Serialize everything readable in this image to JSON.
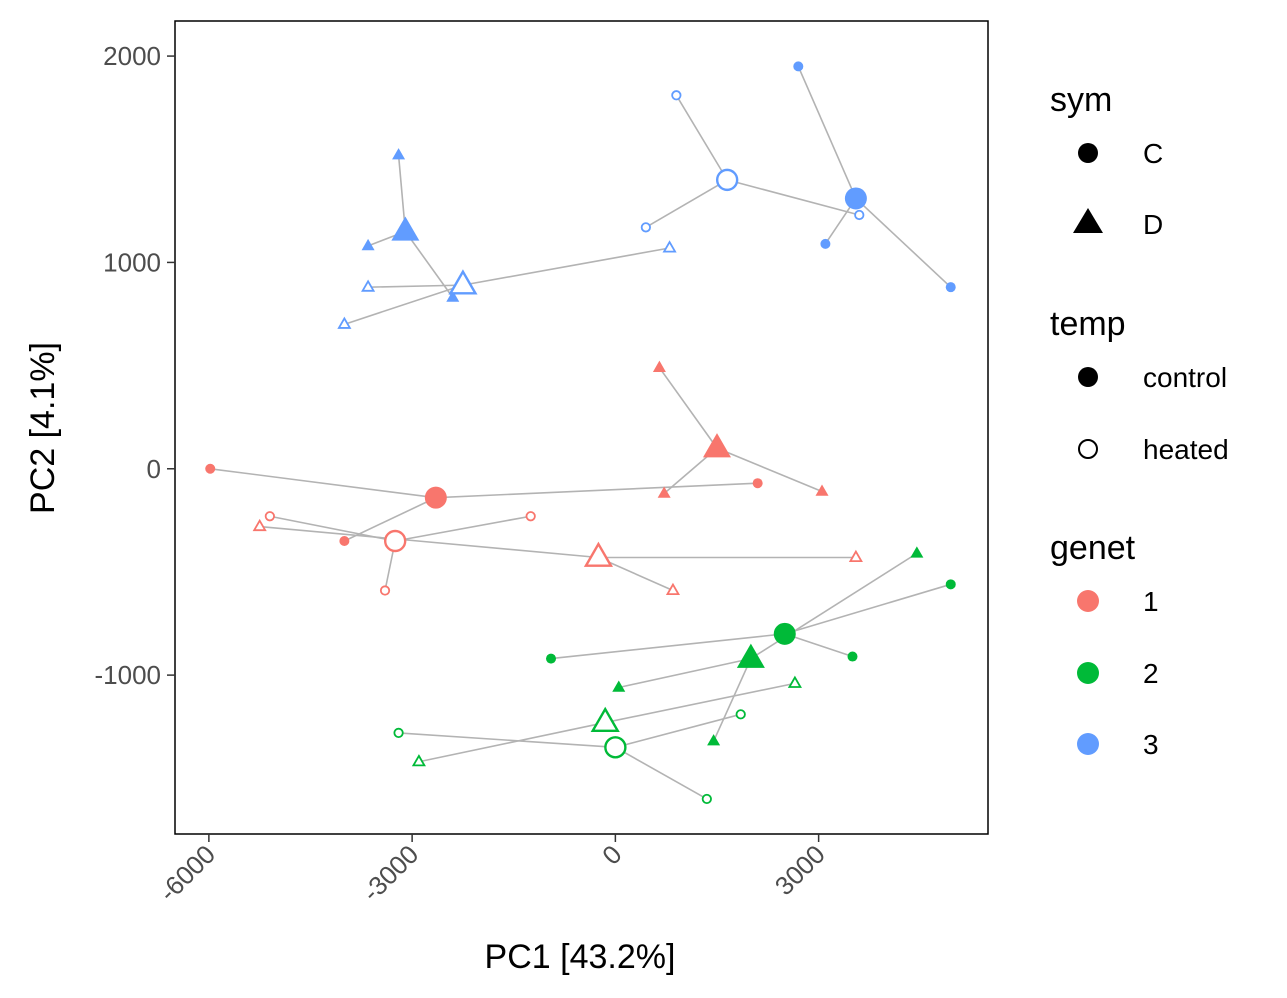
{
  "chart_data": {
    "type": "scatter",
    "xlabel": "PC1 [43.2%]",
    "ylabel": "PC2 [4.1%]",
    "xlim": [
      -6500,
      5500
    ],
    "ylim": [
      -1770,
      2170
    ],
    "xticks": [
      -6000,
      -3000,
      0,
      3000
    ],
    "xtick_labels": [
      "-6000",
      "-3000",
      "0",
      "3000"
    ],
    "yticks": [
      -1000,
      0,
      1000,
      2000
    ],
    "ytick_labels": [
      "-1000",
      "0",
      "1000",
      "2000"
    ],
    "grid": false,
    "legend_placement": "right",
    "legend": {
      "sym": {
        "title": "sym",
        "items": [
          {
            "label": "C",
            "shape": "circle"
          },
          {
            "label": "D",
            "shape": "triangle"
          }
        ]
      },
      "temp": {
        "title": "temp",
        "items": [
          {
            "label": "control",
            "fill": "filled"
          },
          {
            "label": "heated",
            "fill": "open"
          }
        ]
      },
      "genet": {
        "title": "genet",
        "items": [
          {
            "label": "1",
            "color": "#F8766D"
          },
          {
            "label": "2",
            "color": "#00BA38"
          },
          {
            "label": "3",
            "color": "#619CFF"
          }
        ]
      }
    },
    "colors": {
      "1": "#F8766D",
      "2": "#00BA38",
      "3": "#619CFF",
      "segment": "#b3b3b3"
    },
    "groups": [
      {
        "genet": "1",
        "sym": "C",
        "temp": "control",
        "centroid": [
          -2650,
          -140
        ],
        "points": [
          [
            -5980,
            0
          ],
          [
            -4000,
            -350
          ],
          [
            2100,
            -70
          ]
        ]
      },
      {
        "genet": "1",
        "sym": "C",
        "temp": "heated",
        "centroid": [
          -3250,
          -350
        ],
        "points": [
          [
            -5100,
            -230
          ],
          [
            -3400,
            -590
          ],
          [
            -1250,
            -230
          ]
        ]
      },
      {
        "genet": "1",
        "sym": "D",
        "temp": "control",
        "centroid": [
          1500,
          100
        ],
        "points": [
          [
            650,
            490
          ],
          [
            720,
            -120
          ],
          [
            3050,
            -110
          ]
        ]
      },
      {
        "genet": "1",
        "sym": "D",
        "temp": "heated",
        "centroid": [
          -250,
          -430
        ],
        "points": [
          [
            -5250,
            -280
          ],
          [
            3550,
            -430
          ],
          [
            850,
            -590
          ]
        ]
      },
      {
        "genet": "2",
        "sym": "C",
        "temp": "control",
        "centroid": [
          2500,
          -800
        ],
        "points": [
          [
            -950,
            -920
          ],
          [
            3500,
            -910
          ],
          [
            4950,
            -560
          ]
        ]
      },
      {
        "genet": "2",
        "sym": "C",
        "temp": "heated",
        "centroid": [
          0,
          -1350
        ],
        "points": [
          [
            -3200,
            -1280
          ],
          [
            1850,
            -1190
          ],
          [
            1350,
            -1600
          ]
        ]
      },
      {
        "genet": "2",
        "sym": "D",
        "temp": "control",
        "centroid": [
          2000,
          -920
        ],
        "points": [
          [
            50,
            -1060
          ],
          [
            1450,
            -1320
          ],
          [
            4450,
            -410
          ]
        ]
      },
      {
        "genet": "2",
        "sym": "D",
        "temp": "heated",
        "centroid": [
          -150,
          -1230
        ],
        "points": [
          [
            -2900,
            -1420
          ],
          [
            2650,
            -1040
          ]
        ]
      },
      {
        "genet": "3",
        "sym": "C",
        "temp": "control",
        "centroid": [
          3550,
          1310
        ],
        "points": [
          [
            2700,
            1950
          ],
          [
            3100,
            1090
          ],
          [
            4950,
            880
          ]
        ]
      },
      {
        "genet": "3",
        "sym": "C",
        "temp": "heated",
        "centroid": [
          1650,
          1400
        ],
        "points": [
          [
            900,
            1810
          ],
          [
            450,
            1170
          ],
          [
            3600,
            1230
          ]
        ]
      },
      {
        "genet": "3",
        "sym": "D",
        "temp": "control",
        "centroid": [
          -3100,
          1150
        ],
        "points": [
          [
            -3200,
            1520
          ],
          [
            -3650,
            1080
          ],
          [
            -2400,
            830
          ]
        ]
      },
      {
        "genet": "3",
        "sym": "D",
        "temp": "heated",
        "centroid": [
          -2250,
          890
        ],
        "points": [
          [
            -3650,
            880
          ],
          [
            -4000,
            700
          ],
          [
            800,
            1070
          ]
        ]
      }
    ]
  }
}
